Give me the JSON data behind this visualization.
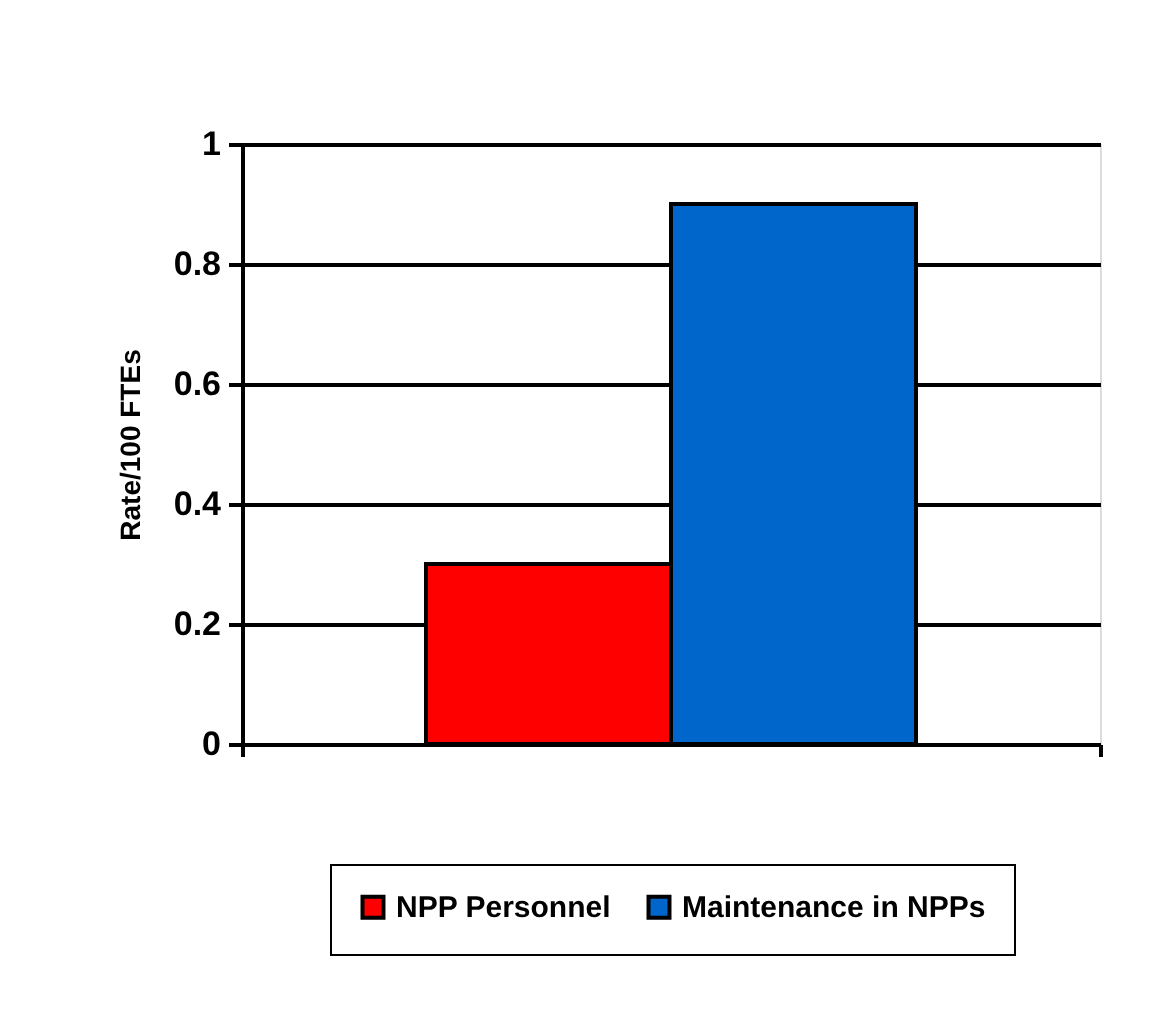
{
  "chart_data": {
    "type": "bar",
    "ylabel": "Rate/100 FTEs",
    "categories": [
      null
    ],
    "series": [
      {
        "name": "NPP Personnel",
        "color": "#ff0000",
        "values": [
          0.3
        ]
      },
      {
        "name": "Maintenance in NPPs",
        "color": "#0066cc",
        "values": [
          0.9
        ]
      }
    ],
    "ylim": [
      0,
      1
    ],
    "yticks": [
      0,
      0.2,
      0.4,
      0.6,
      0.8,
      1
    ],
    "grid": "y",
    "legend": "bottom",
    "tick_labels": "y"
  }
}
